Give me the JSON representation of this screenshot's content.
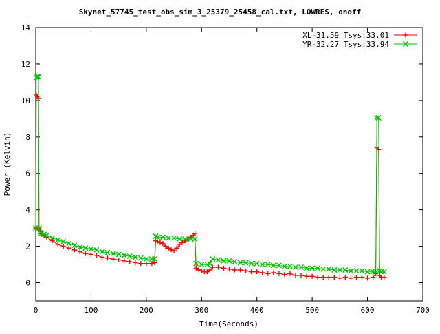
{
  "chart_data": {
    "type": "line",
    "title": "Skynet_57745_test_obs_sim_3_25379_25458_cal.txt, LOWRES, onoff",
    "xlabel": "Time(Seconds)",
    "ylabel": "Power (Kelvin)",
    "xlim": [
      0,
      700
    ],
    "ylim": [
      -1,
      14
    ],
    "xticks": [
      0,
      100,
      200,
      300,
      400,
      500,
      600,
      700
    ],
    "yticks": [
      0,
      2,
      4,
      6,
      8,
      10,
      12,
      14
    ],
    "grid": false,
    "legend_position": "top-right",
    "series": [
      {
        "name": "XL-31.59 Tsys:33.01",
        "color": "#ff0000",
        "marker": "plus",
        "points": [
          [
            0,
            3.0
          ],
          [
            1,
            10.3
          ],
          [
            3,
            10.2
          ],
          [
            5,
            10.1
          ],
          [
            6,
            3.0
          ],
          [
            8,
            2.8
          ],
          [
            10,
            2.7
          ],
          [
            15,
            2.6
          ],
          [
            20,
            2.5
          ],
          [
            30,
            2.3
          ],
          [
            40,
            2.1
          ],
          [
            50,
            2.0
          ],
          [
            60,
            1.9
          ],
          [
            70,
            1.8
          ],
          [
            80,
            1.7
          ],
          [
            90,
            1.6
          ],
          [
            100,
            1.55
          ],
          [
            110,
            1.5
          ],
          [
            120,
            1.4
          ],
          [
            130,
            1.35
          ],
          [
            140,
            1.3
          ],
          [
            150,
            1.25
          ],
          [
            160,
            1.2
          ],
          [
            170,
            1.15
          ],
          [
            180,
            1.1
          ],
          [
            190,
            1.05
          ],
          [
            200,
            1.05
          ],
          [
            210,
            1.05
          ],
          [
            215,
            1.1
          ],
          [
            217,
            2.3
          ],
          [
            220,
            2.25
          ],
          [
            225,
            2.2
          ],
          [
            230,
            2.15
          ],
          [
            235,
            2.0
          ],
          [
            240,
            1.9
          ],
          [
            245,
            1.8
          ],
          [
            250,
            1.75
          ],
          [
            255,
            1.9
          ],
          [
            260,
            2.1
          ],
          [
            265,
            2.2
          ],
          [
            270,
            2.3
          ],
          [
            275,
            2.4
          ],
          [
            280,
            2.5
          ],
          [
            285,
            2.6
          ],
          [
            288,
            2.7
          ],
          [
            290,
            0.8
          ],
          [
            295,
            0.7
          ],
          [
            300,
            0.65
          ],
          [
            305,
            0.6
          ],
          [
            310,
            0.6
          ],
          [
            315,
            0.7
          ],
          [
            320,
            0.85
          ],
          [
            330,
            0.85
          ],
          [
            340,
            0.8
          ],
          [
            350,
            0.75
          ],
          [
            360,
            0.7
          ],
          [
            370,
            0.7
          ],
          [
            380,
            0.65
          ],
          [
            390,
            0.6
          ],
          [
            400,
            0.6
          ],
          [
            410,
            0.55
          ],
          [
            420,
            0.5
          ],
          [
            430,
            0.55
          ],
          [
            440,
            0.5
          ],
          [
            450,
            0.45
          ],
          [
            460,
            0.5
          ],
          [
            470,
            0.4
          ],
          [
            480,
            0.4
          ],
          [
            490,
            0.35
          ],
          [
            500,
            0.35
          ],
          [
            510,
            0.3
          ],
          [
            520,
            0.3
          ],
          [
            530,
            0.3
          ],
          [
            540,
            0.3
          ],
          [
            550,
            0.25
          ],
          [
            560,
            0.3
          ],
          [
            570,
            0.25
          ],
          [
            580,
            0.3
          ],
          [
            590,
            0.3
          ],
          [
            600,
            0.25
          ],
          [
            610,
            0.3
          ],
          [
            615,
            0.5
          ],
          [
            617,
            7.4
          ],
          [
            620,
            7.3
          ],
          [
            622,
            0.4
          ],
          [
            625,
            0.3
          ],
          [
            630,
            0.3
          ]
        ]
      },
      {
        "name": "YR-32.27 Tsys:33.94",
        "color": "#00c000",
        "marker": "cross",
        "points": [
          [
            0,
            3.0
          ],
          [
            1,
            11.25
          ],
          [
            3,
            11.3
          ],
          [
            5,
            11.3
          ],
          [
            6,
            3.0
          ],
          [
            8,
            2.75
          ],
          [
            10,
            2.7
          ],
          [
            15,
            2.65
          ],
          [
            20,
            2.6
          ],
          [
            30,
            2.45
          ],
          [
            40,
            2.35
          ],
          [
            50,
            2.25
          ],
          [
            60,
            2.15
          ],
          [
            70,
            2.05
          ],
          [
            80,
            1.95
          ],
          [
            90,
            1.9
          ],
          [
            100,
            1.85
          ],
          [
            110,
            1.8
          ],
          [
            120,
            1.7
          ],
          [
            130,
            1.65
          ],
          [
            140,
            1.6
          ],
          [
            150,
            1.55
          ],
          [
            160,
            1.5
          ],
          [
            170,
            1.45
          ],
          [
            180,
            1.4
          ],
          [
            190,
            1.35
          ],
          [
            200,
            1.3
          ],
          [
            210,
            1.3
          ],
          [
            215,
            1.3
          ],
          [
            217,
            2.55
          ],
          [
            220,
            2.5
          ],
          [
            230,
            2.5
          ],
          [
            240,
            2.45
          ],
          [
            250,
            2.45
          ],
          [
            260,
            2.4
          ],
          [
            270,
            2.4
          ],
          [
            280,
            2.4
          ],
          [
            288,
            2.4
          ],
          [
            290,
            1.05
          ],
          [
            300,
            1.0
          ],
          [
            310,
            1.0
          ],
          [
            315,
            1.05
          ],
          [
            320,
            1.3
          ],
          [
            330,
            1.25
          ],
          [
            340,
            1.2
          ],
          [
            350,
            1.2
          ],
          [
            360,
            1.15
          ],
          [
            370,
            1.1
          ],
          [
            380,
            1.1
          ],
          [
            390,
            1.05
          ],
          [
            400,
            1.05
          ],
          [
            410,
            1.0
          ],
          [
            420,
            1.0
          ],
          [
            430,
            0.95
          ],
          [
            440,
            0.95
          ],
          [
            450,
            0.9
          ],
          [
            460,
            0.9
          ],
          [
            470,
            0.85
          ],
          [
            480,
            0.85
          ],
          [
            490,
            0.8
          ],
          [
            500,
            0.8
          ],
          [
            510,
            0.8
          ],
          [
            520,
            0.75
          ],
          [
            530,
            0.75
          ],
          [
            540,
            0.7
          ],
          [
            550,
            0.7
          ],
          [
            560,
            0.7
          ],
          [
            570,
            0.65
          ],
          [
            580,
            0.65
          ],
          [
            590,
            0.65
          ],
          [
            600,
            0.6
          ],
          [
            610,
            0.6
          ],
          [
            615,
            0.6
          ],
          [
            617,
            9.05
          ],
          [
            620,
            9.05
          ],
          [
            622,
            0.65
          ],
          [
            625,
            0.6
          ],
          [
            630,
            0.6
          ]
        ]
      }
    ]
  }
}
